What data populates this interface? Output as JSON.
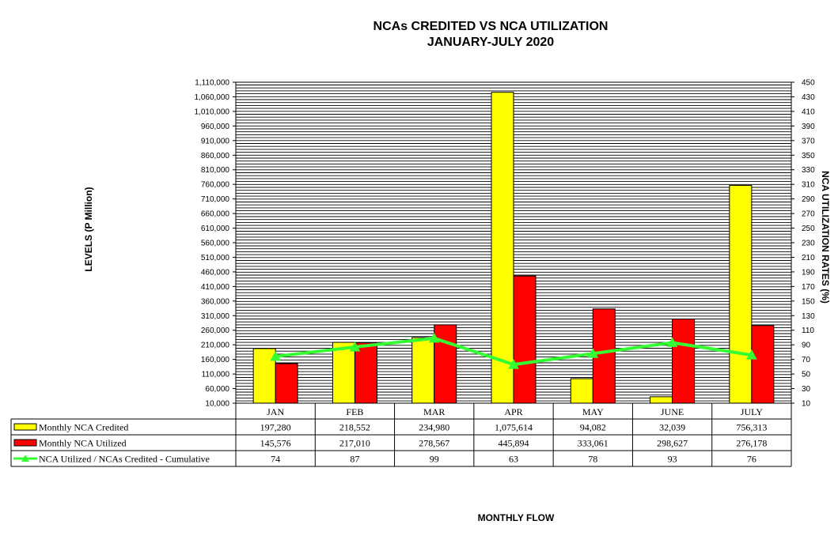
{
  "chart_data": {
    "type": "bar",
    "title_line1": "NCAs CREDITED VS NCA UTILIZATION",
    "title_line2": "JANUARY-JULY 2020",
    "xlabel": "MONTHLY FLOW",
    "ylabel": "LEVELS (P Million)",
    "y2label": "NCA UTILIZATION RATES (%)",
    "categories": [
      "JAN",
      "FEB",
      "MAR",
      "APR",
      "MAY",
      "JUNE",
      "JULY"
    ],
    "ylim": [
      10000,
      1110000
    ],
    "y_ticks": [
      "10,000",
      "60,000",
      "110,000",
      "160,000",
      "210,000",
      "260,000",
      "310,000",
      "360,000",
      "410,000",
      "460,000",
      "510,000",
      "560,000",
      "610,000",
      "660,000",
      "710,000",
      "760,000",
      "810,000",
      "860,000",
      "910,000",
      "960,000",
      "1,010,000",
      "1,060,000",
      "1,110,000"
    ],
    "y2lim": [
      10,
      450
    ],
    "y2_ticks": [
      "10",
      "30",
      "50",
      "70",
      "90",
      "110",
      "130",
      "150",
      "170",
      "190",
      "210",
      "230",
      "250",
      "270",
      "290",
      "310",
      "330",
      "350",
      "370",
      "390",
      "410",
      "430",
      "450"
    ],
    "grid": true,
    "series": [
      {
        "name": "Monthly NCA Credited",
        "kind": "bar",
        "axis": "left",
        "color": "#FFFF00",
        "values": [
          197280,
          218552,
          234980,
          1075614,
          94082,
          32039,
          756313
        ],
        "labels": [
          "197,280",
          "218,552",
          "234,980",
          "1,075,614",
          "94,082",
          "32,039",
          "756,313"
        ]
      },
      {
        "name": "Monthly NCA Utilized",
        "kind": "bar",
        "axis": "left",
        "color": "#FF0000",
        "values": [
          145576,
          217010,
          278567,
          445894,
          333061,
          298627,
          276178
        ],
        "labels": [
          "145,576",
          "217,010",
          "278,567",
          "445,894",
          "333,061",
          "298,627",
          "276,178"
        ]
      },
      {
        "name": "NCA Utilized / NCAs Credited - Cumulative",
        "kind": "line",
        "axis": "right",
        "color": "#33FF33",
        "values": [
          74,
          87,
          99,
          63,
          78,
          93,
          76
        ],
        "labels": [
          "74",
          "87",
          "99",
          "63",
          "78",
          "93",
          "76"
        ]
      }
    ]
  }
}
